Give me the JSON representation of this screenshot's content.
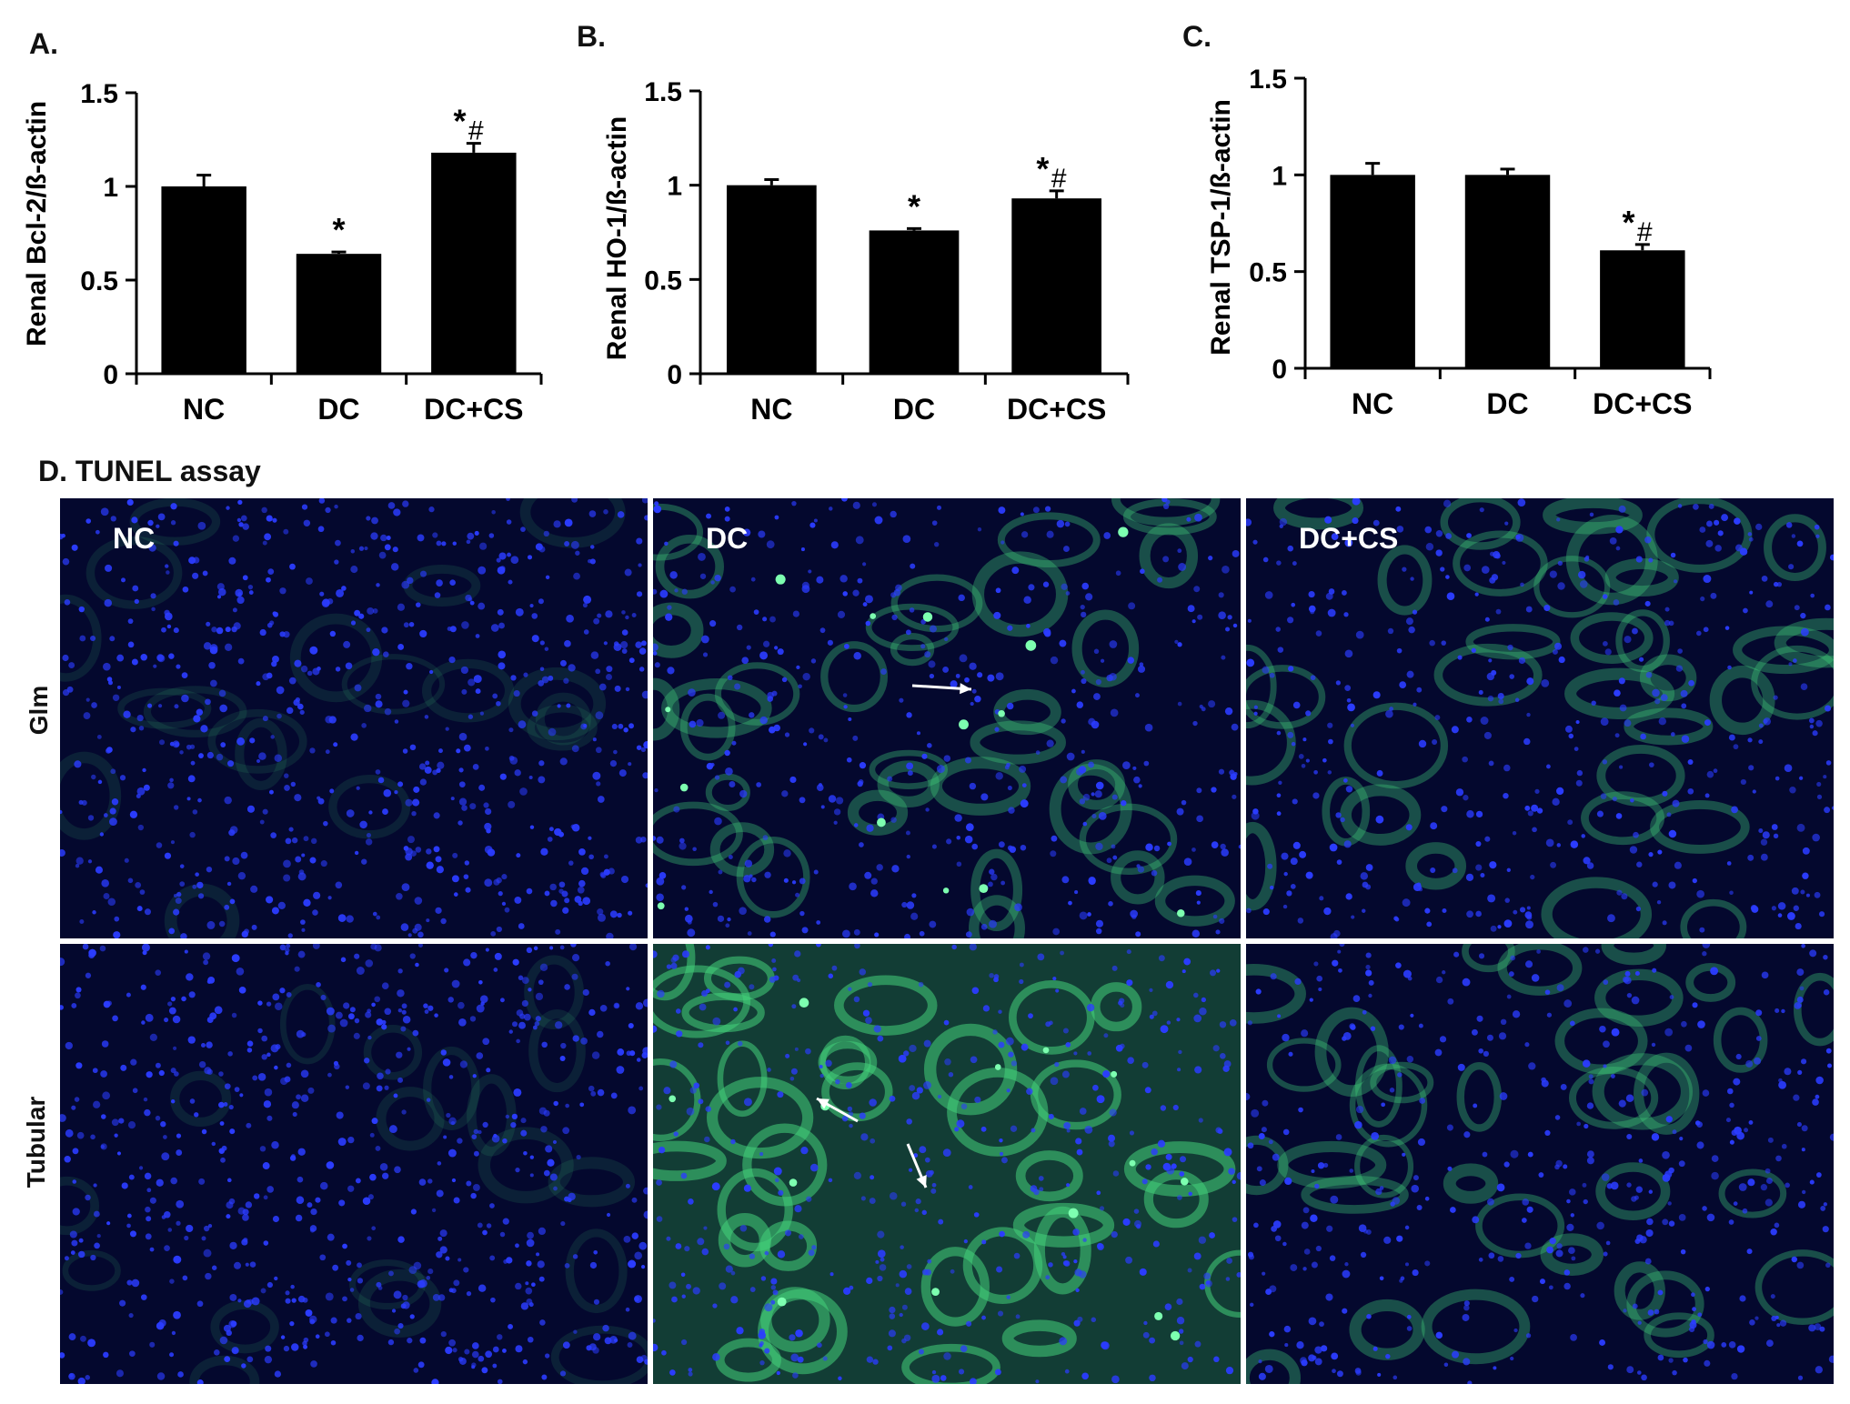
{
  "chart_data": [
    {
      "type": "bar",
      "panel": "A.",
      "ylabel": "Renal Bcl-2/ß-actin",
      "categories": [
        "NC",
        "DC",
        "DC+CS"
      ],
      "values": [
        1.0,
        0.64,
        1.18
      ],
      "errors": [
        0.06,
        0.01,
        0.05
      ],
      "significance": [
        "",
        "*",
        "*#"
      ],
      "ylim": [
        0,
        1.5
      ],
      "yticks": [
        "0",
        "0.5",
        "1",
        "1.5"
      ],
      "grid": false
    },
    {
      "type": "bar",
      "panel": "B.",
      "ylabel": "Renal HO-1/ß-actin",
      "categories": [
        "NC",
        "DC",
        "DC+CS"
      ],
      "values": [
        1.0,
        0.76,
        0.93
      ],
      "errors": [
        0.03,
        0.01,
        0.04
      ],
      "significance": [
        "",
        "*",
        "*#"
      ],
      "ylim": [
        0,
        1.5
      ],
      "yticks": [
        "0",
        "0.5",
        "1",
        "1.5"
      ],
      "grid": false
    },
    {
      "type": "bar",
      "panel": "C.",
      "ylabel": "Renal TSP-1/ß-actin",
      "categories": [
        "NC",
        "DC",
        "DC+CS"
      ],
      "values": [
        1.0,
        1.0,
        0.61
      ],
      "errors": [
        0.06,
        0.03,
        0.03
      ],
      "significance": [
        "",
        "",
        "*#"
      ],
      "ylim": [
        0,
        1.5
      ],
      "yticks": [
        "0",
        "0.5",
        "1",
        "1.5"
      ],
      "grid": false
    }
  ],
  "tunel": {
    "title": "D. TUNEL assay",
    "columns": [
      "NC",
      "DC",
      "DC+CS"
    ],
    "rows": [
      "Glm",
      "Tubular"
    ],
    "colors": {
      "background": "#04082e",
      "nuclei": "#2b3cff",
      "tunel": "#43d17a",
      "arrow": "#ffffff"
    }
  }
}
